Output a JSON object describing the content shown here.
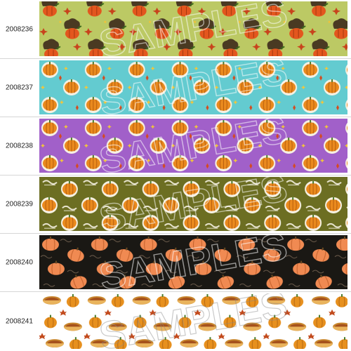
{
  "watermark": "SAMPLES",
  "ribbons": [
    {
      "code": "2008236",
      "background": "#bcc964",
      "motif": "pumpkin-hat-icon"
    },
    {
      "code": "2008237",
      "background": "#63cbd0",
      "motif": "pumpkin-icon"
    },
    {
      "code": "2008238",
      "background": "#a160c9",
      "motif": "pumpkin-icon"
    },
    {
      "code": "2008239",
      "background": "#6c6e22",
      "motif": "pumpkin-icon"
    },
    {
      "code": "2008240",
      "background": "#1a1814",
      "motif": "pumpkin-icon"
    },
    {
      "code": "2008241",
      "background": "#ffffff",
      "motif": "pumpkin-pie-icon"
    }
  ]
}
